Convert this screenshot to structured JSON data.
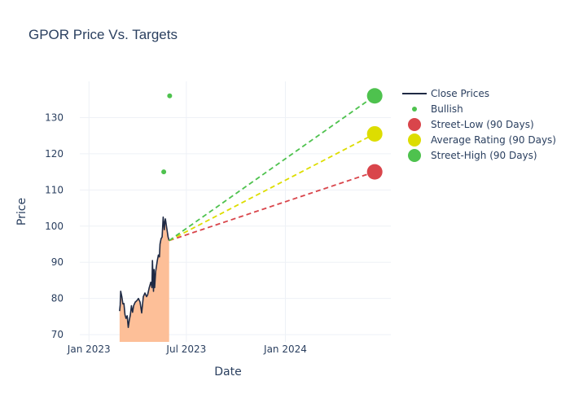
{
  "chart_data": {
    "type": "line",
    "title": "GPOR Price Vs. Targets",
    "xlabel": "Date",
    "ylabel": "Price",
    "xlim": [
      "2022-12-15",
      "2024-07-15"
    ],
    "ylim": [
      68,
      140
    ],
    "x_ticks": [
      {
        "date": "2023-01-01",
        "label": "Jan 2023"
      },
      {
        "date": "2023-07-01",
        "label": "Jul 2023"
      },
      {
        "date": "2024-01-01",
        "label": "Jan 2024"
      }
    ],
    "y_ticks": [
      70,
      80,
      90,
      100,
      110,
      120,
      130
    ],
    "grid": true,
    "legend_position": "top-right",
    "colors": {
      "close_line": "#1f2a44",
      "close_fill": "#fdbf98",
      "bullish": "#4ec24e",
      "street_low": "#d9454b",
      "average": "#dddd00",
      "street_high": "#4ec24e",
      "grid": "#eef1f6",
      "axis_text": "#2a3f5f"
    },
    "series": [
      {
        "name": "Close Prices",
        "type": "line-area",
        "points": [
          [
            "2023-02-27",
            76.5
          ],
          [
            "2023-02-28",
            78.2
          ],
          [
            "2023-03-01",
            82.0
          ],
          [
            "2023-03-03",
            80.5
          ],
          [
            "2023-03-05",
            78.5
          ],
          [
            "2023-03-07",
            78.6
          ],
          [
            "2023-03-09",
            75.5
          ],
          [
            "2023-03-11",
            74.5
          ],
          [
            "2023-03-13",
            75.2
          ],
          [
            "2023-03-15",
            72.0
          ],
          [
            "2023-03-17",
            74.0
          ],
          [
            "2023-03-19",
            75.5
          ],
          [
            "2023-03-21",
            78.0
          ],
          [
            "2023-03-23",
            76.2
          ],
          [
            "2023-03-25",
            78.0
          ],
          [
            "2023-03-28",
            79.0
          ],
          [
            "2023-03-31",
            79.4
          ],
          [
            "2023-04-03",
            80.0
          ],
          [
            "2023-04-06",
            79.0
          ],
          [
            "2023-04-09",
            76.0
          ],
          [
            "2023-04-12",
            80.5
          ],
          [
            "2023-04-15",
            81.5
          ],
          [
            "2023-04-18",
            80.5
          ],
          [
            "2023-04-20",
            81.0
          ],
          [
            "2023-04-23",
            83.0
          ],
          [
            "2023-04-26",
            84.5
          ],
          [
            "2023-04-28",
            83.0
          ],
          [
            "2023-04-29",
            90.5
          ],
          [
            "2023-05-01",
            82.0
          ],
          [
            "2023-05-02",
            88.0
          ],
          [
            "2023-05-03",
            83.0
          ],
          [
            "2023-05-05",
            87.5
          ],
          [
            "2023-05-08",
            90.5
          ],
          [
            "2023-05-10",
            92.0
          ],
          [
            "2023-05-12",
            91.5
          ],
          [
            "2023-05-13",
            95.0
          ],
          [
            "2023-05-15",
            96.5
          ],
          [
            "2023-05-17",
            97.0
          ],
          [
            "2023-05-19",
            102.5
          ],
          [
            "2023-05-21",
            99.0
          ],
          [
            "2023-05-22",
            101.0
          ],
          [
            "2023-05-23",
            102.0
          ],
          [
            "2023-05-25",
            100.0
          ],
          [
            "2023-05-26",
            99.0
          ],
          [
            "2023-05-28",
            97.0
          ],
          [
            "2023-05-30",
            96.0
          ]
        ]
      },
      {
        "name": "Bullish",
        "type": "scatter",
        "points": [
          [
            "2023-05-20",
            115
          ],
          [
            "2023-05-31",
            136
          ]
        ]
      },
      {
        "name": "Street-Low (90 Days)",
        "type": "target",
        "from": [
          "2023-05-30",
          96
        ],
        "to": [
          "2024-06-15",
          115
        ]
      },
      {
        "name": "Average Rating (90 Days)",
        "type": "target",
        "from": [
          "2023-05-30",
          96
        ],
        "to": [
          "2024-06-15",
          125.5
        ]
      },
      {
        "name": "Street-High (90 Days)",
        "type": "target",
        "from": [
          "2023-05-30",
          96
        ],
        "to": [
          "2024-06-15",
          136
        ]
      }
    ]
  }
}
